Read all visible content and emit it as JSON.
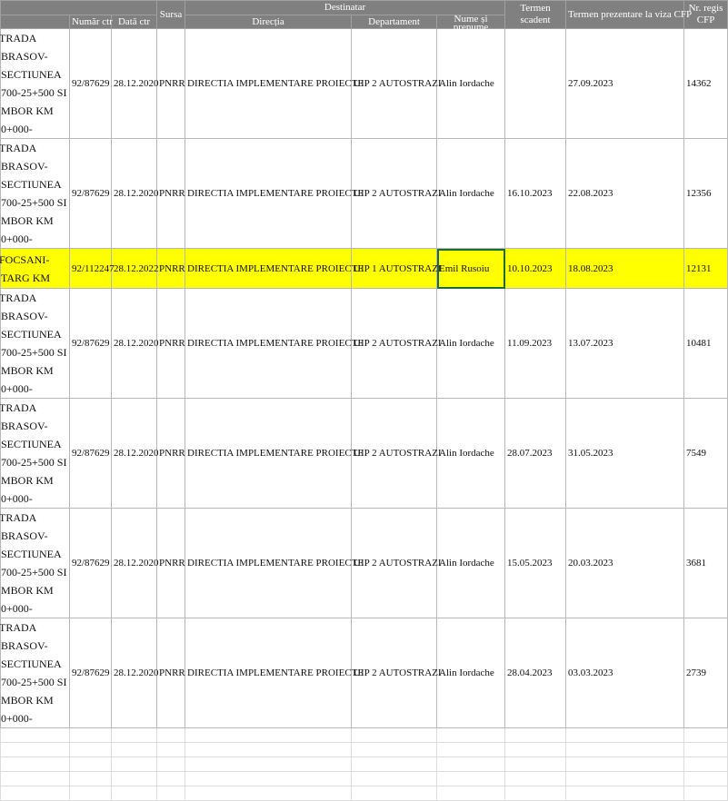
{
  "header": {
    "sursa": "Sursa",
    "destinatar": "Destinatar",
    "numar_ctr": "Număr ctr",
    "data_ctr": "Dată ctr",
    "directia": "Direcția",
    "departament": "Departament",
    "nume": "Nume și prenume",
    "termen_scadent": "Termen scadent",
    "termen_prezentare": "Termen prezentare la viza CFP",
    "nr_registru": "Nr. regis CFP"
  },
  "rows": [
    {
      "obiect": "TRADA BRASOV-\nSECTIUNEA\n700-25+500 SI\nMBOR KM 0+000-",
      "numar": "92/87629",
      "data": "28.12.2020",
      "sursa": "PNRR",
      "directia": "DIRECTIA IMPLEMENTARE PROIECTE",
      "departament": "UIP 2 AUTOSTRAZI",
      "nume": "Alin Iordache",
      "scadent": "",
      "prezentare": "27.09.2023",
      "nr": "14362"
    },
    {
      "obiect": "TRADA BRASOV-\nSECTIUNEA\n700-25+500 SI\nMBOR KM 0+000-",
      "numar": "92/87629",
      "data": "28.12.2020",
      "sursa": "PNRR",
      "directia": "DIRECTIA IMPLEMENTARE PROIECTE",
      "departament": "UIP 2 AUTOSTRAZI",
      "nume": "Alin Iordache",
      "scadent": "16.10.2023",
      "prezentare": "22.08.2023",
      "nr": "12356"
    },
    {
      "obiect": "FOCSANI-\n TARG KM",
      "numar": "92/112247",
      "data": "28.12.2022",
      "sursa": "PNRR",
      "directia": "DIRECTIA IMPLEMENTARE PROIECTE",
      "departament": "UIP 1 AUTOSTRAZI",
      "nume": "Emil Rusoiu",
      "scadent": "10.10.2023",
      "prezentare": "18.08.2023",
      "nr": "12131"
    },
    {
      "obiect": "TRADA BRASOV-\nSECTIUNEA\n700-25+500 SI\nMBOR KM 0+000-",
      "numar": "92/87629",
      "data": "28.12.2020",
      "sursa": "PNRR",
      "directia": "DIRECTIA IMPLEMENTARE PROIECTE",
      "departament": "UIP 2 AUTOSTRAZI",
      "nume": "Alin Iordache",
      "scadent": "11.09.2023",
      "prezentare": "13.07.2023",
      "nr": "10481"
    },
    {
      "obiect": "TRADA BRASOV-\nSECTIUNEA\n700-25+500 SI\nMBOR KM 0+000-",
      "numar": "92/87629",
      "data": "28.12.2020",
      "sursa": "PNRR",
      "directia": "DIRECTIA IMPLEMENTARE PROIECTE",
      "departament": "UIP 2 AUTOSTRAZI",
      "nume": "Alin Iordache",
      "scadent": "28.07.2023",
      "prezentare": "31.05.2023",
      "nr": "7549"
    },
    {
      "obiect": "TRADA BRASOV-\nSECTIUNEA\n700-25+500 SI\nMBOR KM 0+000-",
      "numar": "92/87629",
      "data": "28.12.2020",
      "sursa": "PNRR",
      "directia": "DIRECTIA IMPLEMENTARE PROIECTE",
      "departament": "UIP 2 AUTOSTRAZI",
      "nume": "Alin Iordache",
      "scadent": "15.05.2023",
      "prezentare": "20.03.2023",
      "nr": "3681"
    },
    {
      "obiect": "TRADA BRASOV-\nSECTIUNEA\n700-25+500 SI\nMBOR KM 0+000-",
      "numar": "92/87629",
      "data": "28.12.2020",
      "sursa": "PNRR",
      "directia": "DIRECTIA IMPLEMENTARE PROIECTE",
      "departament": "UIP 2 AUTOSTRAZI",
      "nume": "Alin Iordache",
      "scadent": "28.04.2023",
      "prezentare": "03.03.2023",
      "nr": "2739"
    }
  ],
  "highlight_row": 2,
  "selected_cell": "nume",
  "colors": {
    "header": "#808080",
    "highlight": "#ffff00",
    "selection": "#1f6b3a"
  }
}
